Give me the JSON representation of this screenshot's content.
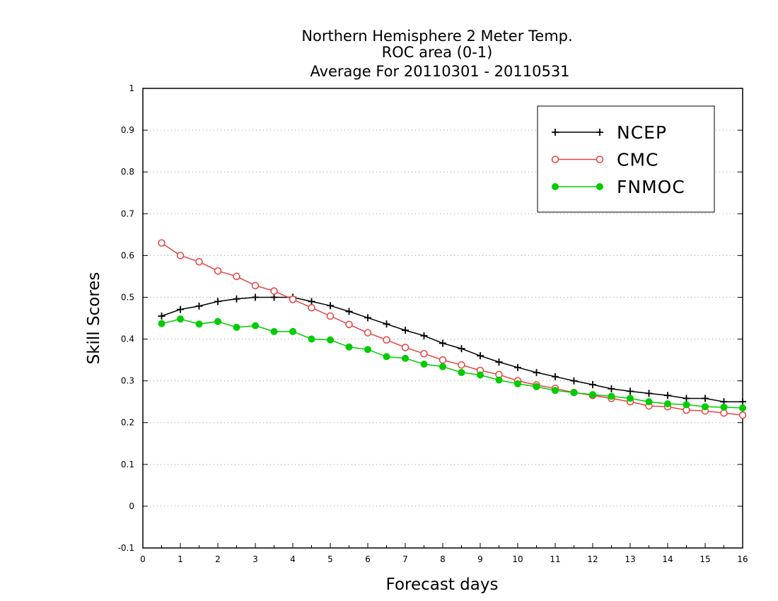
{
  "chart_data": {
    "type": "line",
    "title": [
      "Northern Hemisphere 2 Meter Temp.",
      "ROC area (0-1)",
      "Average For 20110301 - 20110531"
    ],
    "xlabel": "Forecast days",
    "ylabel": "Skill Scores",
    "xlim": [
      0,
      16
    ],
    "ylim": [
      -0.1,
      1
    ],
    "xticks": [
      "0",
      "1",
      "2",
      "3",
      "4",
      "5",
      "6",
      "7",
      "8",
      "9",
      "10",
      "11",
      "12",
      "13",
      "14",
      "15",
      "16"
    ],
    "yticks": [
      "-0.1",
      "0",
      "0.1",
      "0.2",
      "0.3",
      "0.4",
      "0.5",
      "0.6",
      "0.7",
      "0.8",
      "0.9",
      "1"
    ],
    "grid": true,
    "legend_position": "top-right",
    "x": [
      0.5,
      1,
      1.5,
      2,
      2.5,
      3,
      3.5,
      4,
      4.5,
      5,
      5.5,
      6,
      6.5,
      7,
      7.5,
      8,
      8.5,
      9,
      9.5,
      10,
      10.5,
      11,
      11.5,
      12,
      12.5,
      13,
      13.5,
      14,
      14.5,
      15,
      15.5,
      16
    ],
    "series": [
      {
        "name": "NCEP",
        "color": "#000000",
        "marker": "plus",
        "values": [
          0.455,
          0.471,
          0.479,
          0.49,
          0.496,
          0.5,
          0.5,
          0.5,
          0.49,
          0.48,
          0.466,
          0.451,
          0.436,
          0.421,
          0.408,
          0.39,
          0.377,
          0.36,
          0.345,
          0.332,
          0.32,
          0.31,
          0.3,
          0.291,
          0.281,
          0.275,
          0.27,
          0.265,
          0.258,
          0.258,
          0.25,
          0.25
        ]
      },
      {
        "name": "CMC",
        "color": "#e84040",
        "marker": "open-circle",
        "values": [
          0.63,
          0.6,
          0.585,
          0.563,
          0.55,
          0.528,
          0.515,
          0.495,
          0.475,
          0.455,
          0.435,
          0.415,
          0.398,
          0.38,
          0.365,
          0.35,
          0.338,
          0.325,
          0.315,
          0.3,
          0.29,
          0.282,
          0.272,
          0.265,
          0.258,
          0.25,
          0.24,
          0.238,
          0.23,
          0.228,
          0.223,
          0.218
        ]
      },
      {
        "name": "FNMOC",
        "color": "#00cc00",
        "marker": "filled-circle",
        "values": [
          0.437,
          0.448,
          0.436,
          0.442,
          0.428,
          0.432,
          0.418,
          0.418,
          0.4,
          0.398,
          0.381,
          0.375,
          0.358,
          0.354,
          0.34,
          0.334,
          0.32,
          0.314,
          0.302,
          0.293,
          0.286,
          0.277,
          0.272,
          0.267,
          0.263,
          0.258,
          0.25,
          0.245,
          0.243,
          0.238,
          0.237,
          0.235
        ]
      }
    ]
  }
}
